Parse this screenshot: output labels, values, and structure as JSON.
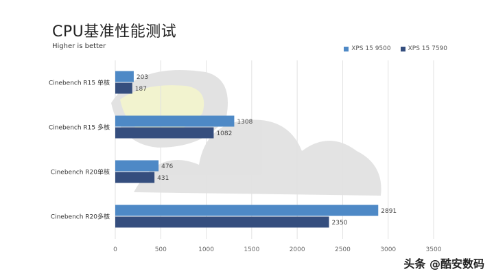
{
  "title": "CPU基准性能测试",
  "subtitle": "Higher is better",
  "watermark": "头条 @酷安数码",
  "colors": {
    "series1": "#4E89C6",
    "series2": "#354E7E",
    "grid": "#e2e2e2",
    "axis_text": "#666666"
  },
  "chart_data": {
    "type": "bar",
    "orientation": "horizontal",
    "title": "CPU基准性能测试",
    "subtitle": "Higher is better",
    "categories": [
      "Cinebench R15 单核",
      "Cinebench R15 多核",
      "Cinebench R20单核",
      "Cinebench R20多核"
    ],
    "series": [
      {
        "name": "XPS 15 9500",
        "values": [
          203,
          1308,
          476,
          2891
        ],
        "color": "#4E89C6"
      },
      {
        "name": "XPS 15 7590",
        "values": [
          187,
          1082,
          431,
          2350
        ],
        "color": "#354E7E"
      }
    ],
    "xlim": [
      0,
      3500
    ],
    "xticks": [
      0,
      500,
      1000,
      1500,
      2000,
      2500,
      3000,
      3500
    ],
    "grid": true,
    "legend_position": "top-right"
  }
}
